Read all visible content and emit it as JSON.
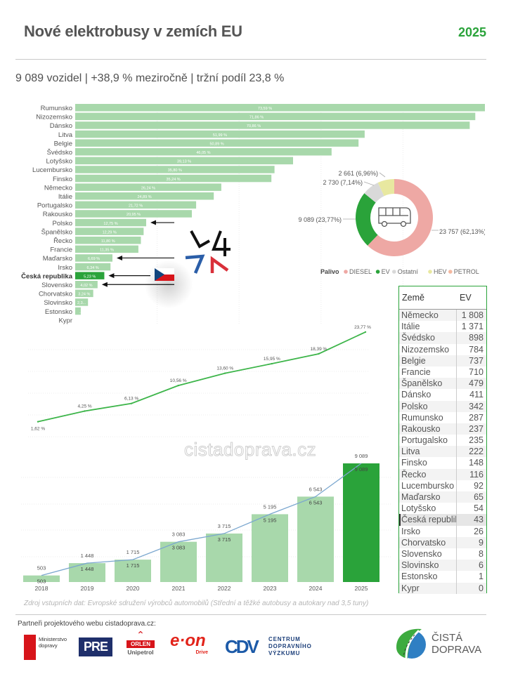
{
  "header": {
    "title": "Nové elektrobusy v zemích EU",
    "year": "2025",
    "subtitle": "9 089 vozidel | +38,9 % meziročně | tržní podíl 23,8 %"
  },
  "chart_data": [
    {
      "type": "bar",
      "orientation": "horizontal",
      "title": "EV market share by country",
      "categories": [
        "Rumunsko",
        "Nizozemsko",
        "Dánsko",
        "Litva",
        "Belgie",
        "Švédsko",
        "Lotyšsko",
        "Lucembursko",
        "Finsko",
        "Německo",
        "Itálie",
        "Portugalsko",
        "Rakousko",
        "Polsko",
        "Španělsko",
        "Řecko",
        "Francie",
        "Maďarsko",
        "Irsko",
        "Česká republika",
        "Slovensko",
        "Chorvatsko",
        "Slovinsko",
        "Estonsko",
        "Kypr"
      ],
      "values": [
        73.59,
        71.86,
        70.86,
        51.99,
        50.89,
        46.05,
        39.13,
        35.8,
        35.24,
        26.24,
        24.89,
        21.72,
        20.95,
        12.75,
        12.29,
        11.8,
        11.35,
        6.69,
        6.34,
        5.23,
        4.02,
        3.24,
        2.3,
        1.0,
        0
      ],
      "labels": [
        "73,59 %",
        "71,86 %",
        "70,86 %",
        "51,99 %",
        "50,89 %",
        "46,05 %",
        "39,13 %",
        "35,80 %",
        "35,24 %",
        "26,24 %",
        "24,89 %",
        "21,72 %",
        "20,95 %",
        "12,75 %",
        "12,29 %",
        "11,80 %",
        "11,35 %",
        "6,69 %",
        "6,34 %",
        "5,23 %",
        "4,02 %",
        "3,24 %",
        "2,3...",
        "...",
        ""
      ],
      "highlight": "Česká republika",
      "arrows_to": [
        "Polsko",
        "Maďarsko",
        "Česká republika",
        "Slovensko"
      ],
      "xlim": [
        0,
        75
      ],
      "colors": {
        "bar": "#a8d8ab",
        "highlight": "#2aa33a"
      }
    },
    {
      "type": "pie",
      "variant": "donut",
      "legend_title": "Palivo",
      "legend_placement": "bottom",
      "slices": [
        {
          "name": "DIESEL",
          "value": 23757,
          "label": "23 757 (62,13%)",
          "color": "#eea8a4"
        },
        {
          "name": "EV",
          "value": 9089,
          "label": "9 089 (23,77%)",
          "color": "#2aa33a"
        },
        {
          "name": "Ostatní",
          "value": 2730,
          "label": "2 730 (7,14%)",
          "color": "#d9d9d9"
        },
        {
          "name": "HEV",
          "value": 2661,
          "label": "2 661 (6,96%)",
          "color": "#e8e8a0"
        },
        {
          "name": "PETROL",
          "value": 0,
          "label": "",
          "color": "#f4b8a0"
        }
      ],
      "center_icon": "bus-icon"
    },
    {
      "type": "line",
      "title": "EV market share trend",
      "x": [
        "2018",
        "2019",
        "2020",
        "2021",
        "2022",
        "2023",
        "2024",
        "2025"
      ],
      "values": [
        1.62,
        4.25,
        6.13,
        10.56,
        13.6,
        15.95,
        18.39,
        23.77
      ],
      "labels": [
        "1,62 %",
        "4,25 %",
        "6,13 %",
        "10,56 %",
        "13,60 %",
        "15,95 %",
        "18,39 %",
        "23,77 %"
      ],
      "ylim": [
        0,
        25
      ],
      "color": "#3db54a"
    },
    {
      "type": "bar",
      "title": "New electric buses per year",
      "categories": [
        "2018",
        "2019",
        "2020",
        "2021",
        "2022",
        "2023",
        "2024",
        "2025"
      ],
      "values": [
        503,
        1448,
        1715,
        3083,
        3715,
        5195,
        6543,
        9089
      ],
      "labels": [
        "503",
        "1 448",
        "1 715",
        "3 083",
        "3 715",
        "5 195",
        "6 543",
        "9 089"
      ],
      "ylim": [
        0,
        9500
      ],
      "colors": {
        "bar": "#a8d8ab",
        "highlight": "#2aa33a",
        "line": "#7ba7cf"
      },
      "highlight": "2025"
    }
  ],
  "table": {
    "headers": [
      "Země",
      "EV"
    ],
    "rows": [
      [
        "Německo",
        "1 808"
      ],
      [
        "Itálie",
        "1 371"
      ],
      [
        "Švédsko",
        "898"
      ],
      [
        "Nizozemsko",
        "784"
      ],
      [
        "Belgie",
        "737"
      ],
      [
        "Francie",
        "710"
      ],
      [
        "Španělsko",
        "479"
      ],
      [
        "Dánsko",
        "411"
      ],
      [
        "Polsko",
        "342"
      ],
      [
        "Rumunsko",
        "287"
      ],
      [
        "Rakousko",
        "237"
      ],
      [
        "Portugalsko",
        "235"
      ],
      [
        "Litva",
        "222"
      ],
      [
        "Finsko",
        "148"
      ],
      [
        "Řecko",
        "116"
      ],
      [
        "Lucembursko",
        "92"
      ],
      [
        "Maďarsko",
        "65"
      ],
      [
        "Lotyšsko",
        "54"
      ],
      [
        "Česká republika",
        "43"
      ],
      [
        "Irsko",
        "26"
      ],
      [
        "Chorvatsko",
        "9"
      ],
      [
        "Slovensko",
        "8"
      ],
      [
        "Slovinsko",
        "6"
      ],
      [
        "Estonsko",
        "1"
      ],
      [
        "Kypr",
        "0"
      ]
    ],
    "highlight_row": "Česká republika"
  },
  "watermark": "cistadoprava.cz",
  "footer": {
    "source": "Zdroj vstupních dat: Evropské sdružení výrobců automobilů (Střední a těžké autobusy a autokary nad 3,5 tuny)",
    "partners_label": "Partneři projektového webu cistadoprava.cz:",
    "partners": {
      "mdcr_line1": "Ministerstvo",
      "mdcr_line2": "dopravy",
      "pre": "PRE",
      "orlen": "ORLEN",
      "unipetrol": "Unipetrol",
      "eon": "e·on",
      "eon_drive": "Drive",
      "cdv_mark": "CDV",
      "cdv_line1": "CENTRUM",
      "cdv_line2": "DOPRAVNÍHO",
      "cdv_line3": "VÝZKUMU"
    },
    "brand_line1": "ČISTÁ",
    "brand_line2": "DOPRAVA"
  }
}
